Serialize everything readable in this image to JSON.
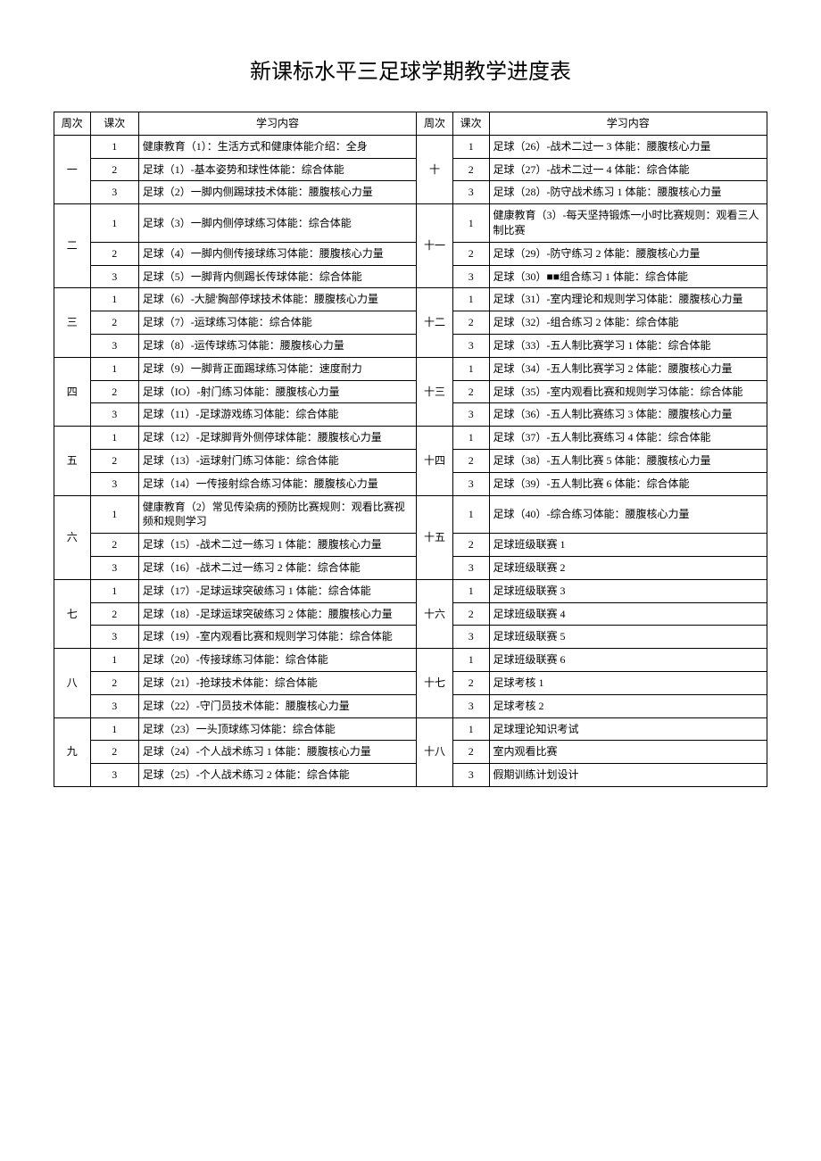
{
  "title": "新课标水平三足球学期教学进度表",
  "headers": {
    "week": "周次",
    "lesson": "课次",
    "content": "学习内容",
    "week2": "周次",
    "lesson2": "课次",
    "content2": "学习内容"
  },
  "rows": [
    {
      "w": "一",
      "wrs": 3,
      "l": "1",
      "c": "健康教育（1）：生活方式和健康体能介绍：全身",
      "w2": "十",
      "w2rs": 3,
      "l2": "1",
      "c2": "足球（26）-战术二过一 3 体能：腰腹核心力量"
    },
    {
      "l": "2",
      "c": "足球（1）-基本姿势和球性体能：综合体能",
      "l2": "2",
      "c2": "足球（27）-战术二过一 4 体能：综合体能"
    },
    {
      "l": "3",
      "c": "足球（2）一脚内侧踢球技术体能：腰腹核心力量",
      "l2": "3",
      "c2": "足球（28）-防守战术练习 1 体能：腰腹核心力量"
    },
    {
      "w": "二",
      "wrs": 3,
      "l": "1",
      "c": "足球（3）一脚内侧停球练习体能：综合体能",
      "w2": "十一",
      "w2rs": 3,
      "l2": "1",
      "c2": "健康教育（3）-每天坚持锻炼一小时比赛规则：观看三人制比赛"
    },
    {
      "l": "2",
      "c": "足球（4）一脚内侧传接球练习体能：腰腹核心力量",
      "l2": "2",
      "c2": "足球（29）-防守练习 2 体能：腰腹核心力量"
    },
    {
      "l": "3",
      "c": "足球（5）一脚背内侧踢长传球体能：综合体能",
      "l2": "3",
      "c2": "足球（30）■■组合练习 1 体能：综合体能"
    },
    {
      "w": "三",
      "wrs": 3,
      "l": "1",
      "c": "足球（6）-大腿'胸部停球技术体能：腰腹核心力量",
      "w2": "十二",
      "w2rs": 3,
      "l2": "1",
      "c2": "足球（31）-室内理论和规则学习体能：腰腹核心力量"
    },
    {
      "l": "2",
      "c": "足球（7）-运球练习体能：综合体能",
      "l2": "2",
      "c2": "足球（32）-组合练习 2 体能：综合体能"
    },
    {
      "l": "3",
      "c": "足球（8）-运传球练习体能：腰腹核心力量",
      "l2": "3",
      "c2": "足球（33）-五人制比赛学习 1 体能：综合体能"
    },
    {
      "w": "四",
      "wrs": 3,
      "l": "1",
      "c": "足球（9）一脚背正面踢球练习体能：速度耐力",
      "w2": "十三",
      "w2rs": 3,
      "l2": "1",
      "c2": "足球（34）-五人制比赛学习 2 体能：腰腹核心力量"
    },
    {
      "l": "2",
      "c": "足球（IO）-射门练习体能：腰腹核心力量",
      "l2": "2",
      "c2": "足球（35）-室内观看比赛和规则学习体能：综合体能"
    },
    {
      "l": "3",
      "c": "足球（11）-足球游戏练习体能：综合体能",
      "l2": "3",
      "c2": "足球（36）-五人制比赛练习 3 体能：腰腹核心力量"
    },
    {
      "w": "五",
      "wrs": 3,
      "l": "1",
      "c": "足球（12）-足球脚背外侧停球体能：腰腹核心力量",
      "w2": "十四",
      "w2rs": 3,
      "l2": "1",
      "c2": "足球（37）-五人制比赛练习 4 体能：综合体能"
    },
    {
      "l": "2",
      "c": "足球（13）-运球射门练习体能：综合体能",
      "l2": "2",
      "c2": "足球（38）-五人制比赛 5 体能：腰腹核心力量"
    },
    {
      "l": "3",
      "c": "足球（14）一传接射综合练习体能：腰腹核心力量",
      "l2": "3",
      "c2": "足球（39）-五人制比赛 6 体能：综合体能"
    },
    {
      "w": "六",
      "wrs": 3,
      "l": "1",
      "c": "健康教育（2）常见传染病的预防比赛规则：观看比赛视频和规则学习",
      "w2": "十五",
      "w2rs": 3,
      "l2": "1",
      "c2": "足球（40）-综合练习体能：腰腹核心力量"
    },
    {
      "l": "2",
      "c": "足球（15）-战术二过一练习 1 体能：腰腹核心力量",
      "l2": "2",
      "c2": "足球班级联赛 1"
    },
    {
      "l": "3",
      "c": "足球（16）-战术二过一练习 2 体能：综合体能",
      "l2": "3",
      "c2": "足球班级联赛 2"
    },
    {
      "w": "七",
      "wrs": 3,
      "l": "1",
      "c": "足球（17）-足球运球突破练习 1 体能：综合体能",
      "w2": "十六",
      "w2rs": 3,
      "l2": "1",
      "c2": "足球班级联赛 3"
    },
    {
      "l": "2",
      "c": "足球（18）-足球运球突破练习 2 体能：腰腹核心力量",
      "l2": "2",
      "c2": "足球班级联赛 4"
    },
    {
      "l": "3",
      "c": "足球（19）-室内观看比赛和规则学习体能：综合体能",
      "l2": "3",
      "c2": "足球班级联赛 5"
    },
    {
      "w": "八",
      "wrs": 3,
      "l": "1",
      "c": "足球（20）-传接球练习体能：综合体能",
      "w2": "十七",
      "w2rs": 3,
      "l2": "1",
      "c2": "足球班级联赛 6"
    },
    {
      "l": "2",
      "c": "足球（21）-抢球技术体能：综合体能",
      "l2": "2",
      "c2": "足球考核 1"
    },
    {
      "l": "3",
      "c": "足球（22）-守门员技术体能：腰腹核心力量",
      "l2": "3",
      "c2": "足球考核 2"
    },
    {
      "w": "九",
      "wrs": 3,
      "l": "1",
      "c": "足球（23）一头顶球练习体能：综合体能",
      "w2": "十八",
      "w2rs": 3,
      "l2": "1",
      "c2": "足球理论知识考试"
    },
    {
      "l": "2",
      "c": "足球（24）-个人战术练习 1 体能：腰腹核心力量",
      "l2": "2",
      "c2": "室内观看比赛"
    },
    {
      "l": "3",
      "c": "足球（25）-个人战术练习 2 体能：综合体能",
      "l2": "3",
      "c2": "假期训练计划设计"
    }
  ]
}
